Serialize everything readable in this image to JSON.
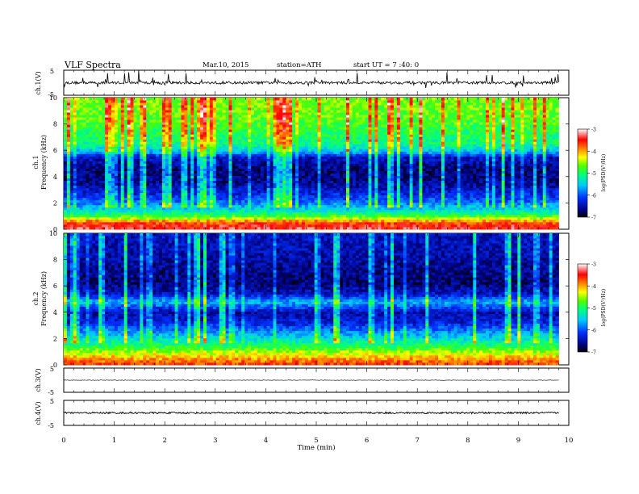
{
  "header": {
    "title": "VLF  Spectra",
    "date": "Mar.10, 2015",
    "station": "station=ATH",
    "start": "start  UT =   7 :40: 0"
  },
  "chart_data": [
    {
      "type": "line",
      "panel": "ch1-waveform",
      "ylabel": "ch.1(V)",
      "ylim": [
        -5,
        5
      ],
      "yticks": [
        "5",
        "-5"
      ],
      "xlim": [
        0,
        10
      ],
      "series": [
        {
          "mean": 0,
          "noise_amplitude": 0.55,
          "impulsive_spikes": true
        }
      ]
    },
    {
      "type": "heatmap",
      "panel": "ch1-spectrogram",
      "ylabel": "ch.1",
      "ylabel2": "Frequency  (kHz)",
      "ylim": [
        0,
        10
      ],
      "yticks": [
        "0",
        "2",
        "4",
        "6",
        "8",
        "10"
      ],
      "xlim": [
        0,
        9.8
      ],
      "colorbar": {
        "label": "log(PSD(V²/Hz)",
        "range": [
          -7,
          -3
        ],
        "ticks": [
          "-3",
          "-4",
          "-5",
          "-6",
          "-7"
        ]
      },
      "frequency_profile_kHz_vs_logPSD": [
        [
          0.0,
          -3.4
        ],
        [
          0.3,
          -3.5
        ],
        [
          0.6,
          -3.8
        ],
        [
          0.9,
          -4.6
        ],
        [
          1.3,
          -5.2
        ],
        [
          1.7,
          -5.6
        ],
        [
          2.2,
          -6.0
        ],
        [
          2.8,
          -6.3
        ],
        [
          3.5,
          -6.6
        ],
        [
          4.5,
          -6.7
        ],
        [
          5.5,
          -6.4
        ],
        [
          5.9,
          -5.6
        ],
        [
          6.5,
          -5.1
        ],
        [
          7.5,
          -4.9
        ],
        [
          8.5,
          -4.7
        ],
        [
          10.0,
          -4.6
        ]
      ]
    },
    {
      "type": "heatmap",
      "panel": "ch2-spectrogram",
      "ylabel": "ch.2",
      "ylabel2": "Frequency  (kHz)",
      "ylim": [
        0,
        10
      ],
      "yticks": [
        "0",
        "2",
        "4",
        "6",
        "8",
        "10"
      ],
      "xlim": [
        0,
        9.8
      ],
      "colorbar": {
        "label": "log(PSD(V²/Hz)",
        "range": [
          -7,
          -3
        ],
        "ticks": [
          "-3",
          "-4",
          "-5",
          "-6",
          "-7"
        ]
      },
      "frequency_profile_kHz_vs_logPSD": [
        [
          0.0,
          -3.6
        ],
        [
          0.4,
          -3.9
        ],
        [
          0.9,
          -4.4
        ],
        [
          1.4,
          -4.9
        ],
        [
          2.0,
          -5.4
        ],
        [
          2.6,
          -5.8
        ],
        [
          3.2,
          -6.3
        ],
        [
          4.0,
          -6.5
        ],
        [
          4.8,
          -5.6
        ],
        [
          5.4,
          -6.4
        ],
        [
          6.2,
          -6.7
        ],
        [
          7.5,
          -6.6
        ],
        [
          8.5,
          -6.5
        ],
        [
          10.0,
          -6.4
        ]
      ]
    },
    {
      "type": "line",
      "panel": "ch3-waveform",
      "ylabel": "ch.3(V)",
      "ylim": [
        -5,
        5
      ],
      "yticks": [
        "5",
        "-5"
      ],
      "xlim": [
        0,
        10
      ],
      "series": [
        {
          "mean": 0,
          "noise_amplitude": 0.1
        }
      ]
    },
    {
      "type": "line",
      "panel": "ch4-waveform",
      "ylabel": "ch.4(V)",
      "ylim": [
        -5,
        5
      ],
      "yticks": [
        "5",
        "-5"
      ],
      "xlim": [
        0,
        10
      ],
      "series": [
        {
          "mean": 0,
          "noise_amplitude": 0.35
        }
      ]
    }
  ],
  "xaxis": {
    "label": "Time  (min)",
    "ticks": [
      "0",
      "1",
      "2",
      "3",
      "4",
      "5",
      "6",
      "7",
      "8",
      "9",
      "10"
    ]
  }
}
